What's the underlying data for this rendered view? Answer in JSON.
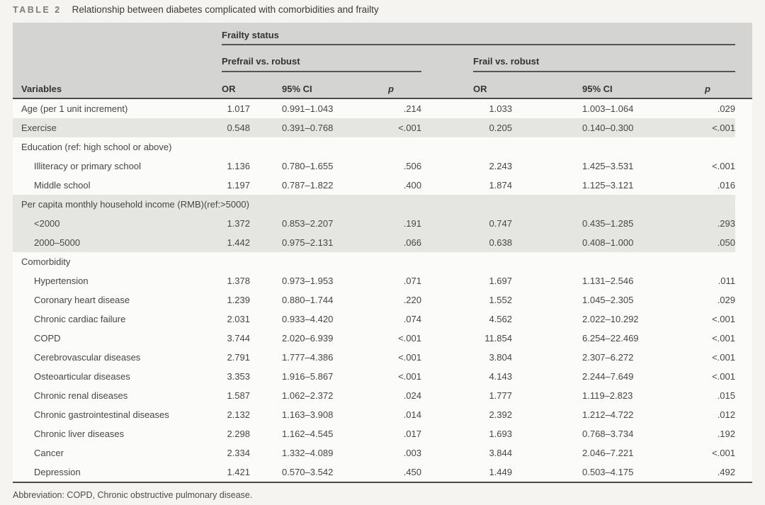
{
  "title_bar": {
    "label": "TABLE 2",
    "title": "Relationship between diabetes complicated with comorbidities and frailty"
  },
  "table": {
    "header": {
      "variables_label": "Variables",
      "group_label": "Frailty status",
      "subgroup_prefrail": "Prefrail vs. robust",
      "subgroup_frail": "Frail vs. robust",
      "col_or": "OR",
      "col_ci": "95% CI",
      "col_p": "p"
    },
    "rows": [
      {
        "label": "Age (per 1 unit increment)",
        "indent": false,
        "shaded": false,
        "prefrail": {
          "or": "1.017",
          "ci": "0.991–1.043",
          "p": ".214"
        },
        "frail": {
          "or": "1.033",
          "ci": "1.003–1.064",
          "p": ".029"
        }
      },
      {
        "label": "Exercise",
        "indent": false,
        "shaded": true,
        "prefrail": {
          "or": "0.548",
          "ci": "0.391–0.768",
          "p": "<.001"
        },
        "frail": {
          "or": "0.205",
          "ci": "0.140–0.300",
          "p": "<.001"
        }
      },
      {
        "label": "Education (ref: high school or above)",
        "indent": false,
        "shaded": false,
        "section": true
      },
      {
        "label": "Illiteracy or primary school",
        "indent": true,
        "shaded": false,
        "prefrail": {
          "or": "1.136",
          "ci": "0.780–1.655",
          "p": ".506"
        },
        "frail": {
          "or": "2.243",
          "ci": "1.425–3.531",
          "p": "<.001"
        }
      },
      {
        "label": "Middle school",
        "indent": true,
        "shaded": false,
        "prefrail": {
          "or": "1.197",
          "ci": "0.787–1.822",
          "p": ".400"
        },
        "frail": {
          "or": "1.874",
          "ci": "1.125–3.121",
          "p": ".016"
        }
      },
      {
        "label": "Per capita monthly household income (RMB)(ref:>5000)",
        "indent": false,
        "shaded": true,
        "section": true
      },
      {
        "label": "<2000",
        "indent": true,
        "shaded": true,
        "prefrail": {
          "or": "1.372",
          "ci": "0.853–2.207",
          "p": ".191"
        },
        "frail": {
          "or": "0.747",
          "ci": "0.435–1.285",
          "p": ".293"
        }
      },
      {
        "label": "2000–5000",
        "indent": true,
        "shaded": true,
        "prefrail": {
          "or": "1.442",
          "ci": "0.975–2.131",
          "p": ".066"
        },
        "frail": {
          "or": "0.638",
          "ci": "0.408–1.000",
          "p": ".050"
        }
      },
      {
        "label": "Comorbidity",
        "indent": false,
        "shaded": false,
        "section": true
      },
      {
        "label": "Hypertension",
        "indent": true,
        "shaded": false,
        "prefrail": {
          "or": "1.378",
          "ci": "0.973–1.953",
          "p": ".071"
        },
        "frail": {
          "or": "1.697",
          "ci": "1.131–2.546",
          "p": ".011"
        }
      },
      {
        "label": "Coronary heart disease",
        "indent": true,
        "shaded": false,
        "prefrail": {
          "or": "1.239",
          "ci": "0.880–1.744",
          "p": ".220"
        },
        "frail": {
          "or": "1.552",
          "ci": "1.045–2.305",
          "p": ".029"
        }
      },
      {
        "label": "Chronic cardiac failure",
        "indent": true,
        "shaded": false,
        "prefrail": {
          "or": "2.031",
          "ci": "0.933–4.420",
          "p": ".074"
        },
        "frail": {
          "or": "4.562",
          "ci": "2.022–10.292",
          "p": "<.001"
        }
      },
      {
        "label": "COPD",
        "indent": true,
        "shaded": false,
        "prefrail": {
          "or": "3.744",
          "ci": "2.020–6.939",
          "p": "<.001"
        },
        "frail": {
          "or": "11.854",
          "ci": "6.254–22.469",
          "p": "<.001"
        }
      },
      {
        "label": "Cerebrovascular diseases",
        "indent": true,
        "shaded": false,
        "prefrail": {
          "or": "2.791",
          "ci": "1.777–4.386",
          "p": "<.001"
        },
        "frail": {
          "or": "3.804",
          "ci": "2.307–6.272",
          "p": "<.001"
        }
      },
      {
        "label": "Osteoarticular diseases",
        "indent": true,
        "shaded": false,
        "prefrail": {
          "or": "3.353",
          "ci": "1.916–5.867",
          "p": "<.001"
        },
        "frail": {
          "or": "4.143",
          "ci": "2.244–7.649",
          "p": "<.001"
        }
      },
      {
        "label": "Chronic renal diseases",
        "indent": true,
        "shaded": false,
        "prefrail": {
          "or": "1.587",
          "ci": "1.062–2.372",
          "p": ".024"
        },
        "frail": {
          "or": "1.777",
          "ci": "1.119–2.823",
          "p": ".015"
        }
      },
      {
        "label": "Chronic gastrointestinal diseases",
        "indent": true,
        "shaded": false,
        "prefrail": {
          "or": "2.132",
          "ci": "1.163–3.908",
          "p": ".014"
        },
        "frail": {
          "or": "2.392",
          "ci": "1.212–4.722",
          "p": ".012"
        }
      },
      {
        "label": "Chronic liver diseases",
        "indent": true,
        "shaded": false,
        "prefrail": {
          "or": "2.298",
          "ci": "1.162–4.545",
          "p": ".017"
        },
        "frail": {
          "or": "1.693",
          "ci": "0.768–3.734",
          "p": ".192"
        }
      },
      {
        "label": "Cancer",
        "indent": true,
        "shaded": false,
        "prefrail": {
          "or": "2.334",
          "ci": "1.332–4.089",
          "p": ".003"
        },
        "frail": {
          "or": "3.844",
          "ci": "2.046–7.221",
          "p": "<.001"
        }
      },
      {
        "label": "Depression",
        "indent": true,
        "shaded": false,
        "prefrail": {
          "or": "1.421",
          "ci": "0.570–3.542",
          "p": ".450"
        },
        "frail": {
          "or": "1.449",
          "ci": "0.503–4.175",
          "p": ".492"
        }
      }
    ]
  },
  "footnote": "Abbreviation: COPD, Chronic obstructive pulmonary disease.",
  "colors": {
    "header_bg": "#d4d4d2",
    "shaded_row_bg": "#e5e5e2",
    "rule_dark": "#4a4a48",
    "page_bg": "#f5f4f1"
  }
}
